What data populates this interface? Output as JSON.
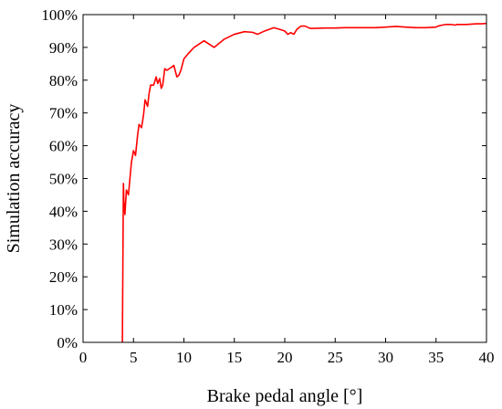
{
  "chart_data": {
    "type": "line",
    "xlabel": "Brake pedal angle [°]",
    "ylabel": "Simulation accuracy",
    "xlim": [
      0,
      40
    ],
    "ylim": [
      0,
      100
    ],
    "xticks": [
      0,
      5,
      10,
      15,
      20,
      25,
      30,
      35,
      40
    ],
    "yticks": [
      0,
      10,
      20,
      30,
      40,
      50,
      60,
      70,
      80,
      90,
      100
    ],
    "ytick_suffix": "%",
    "grid": false,
    "legend": "none",
    "series": [
      {
        "color": "#ff0000",
        "x": [
          3.9,
          3.95,
          4.0,
          4.05,
          4.15,
          4.3,
          4.5,
          4.65,
          4.8,
          5.0,
          5.2,
          5.4,
          5.55,
          5.8,
          6.0,
          6.15,
          6.4,
          6.55,
          6.7,
          7.0,
          7.25,
          7.4,
          7.6,
          7.75,
          7.9,
          8.1,
          8.3,
          8.55,
          8.8,
          9.0,
          9.3,
          9.5,
          9.7,
          10.0,
          10.4,
          11.0,
          12.0,
          12.5,
          13.0,
          14.0,
          15.0,
          16.0,
          16.8,
          17.3,
          18.0,
          18.9,
          19.5,
          20.0,
          20.3,
          20.6,
          20.9,
          21.2,
          21.6,
          22.0,
          22.5,
          23.0,
          24.0,
          25.0,
          26.0,
          27.0,
          28.0,
          29.0,
          30.0,
          31.0,
          32.0,
          33.0,
          34.0,
          35.0,
          35.2,
          35.6,
          36.0,
          36.5,
          36.9,
          37.1,
          37.4,
          38.0,
          38.5,
          39.0,
          39.5,
          40.0
        ],
        "values": [
          0,
          25,
          48.5,
          43,
          39,
          46.5,
          45,
          50,
          55,
          58.5,
          57,
          63,
          66.5,
          65.5,
          69.5,
          74,
          72,
          76,
          78.5,
          78.5,
          81,
          79,
          80.5,
          77.5,
          78.5,
          83.5,
          83,
          83.5,
          84,
          84.5,
          81,
          81.5,
          83,
          86.5,
          88,
          90,
          92,
          91,
          90,
          92.5,
          94,
          94.8,
          94.6,
          94,
          95,
          96,
          95.5,
          95,
          94,
          94.5,
          94,
          95.5,
          96.5,
          96.5,
          95.8,
          95.8,
          95.9,
          95.9,
          96,
          96,
          96,
          96,
          96.2,
          96.4,
          96.2,
          96,
          96,
          96.2,
          96.5,
          96.8,
          97,
          97,
          96.8,
          97,
          97,
          97,
          97.1,
          97.2,
          97.2,
          97.3
        ]
      }
    ]
  }
}
